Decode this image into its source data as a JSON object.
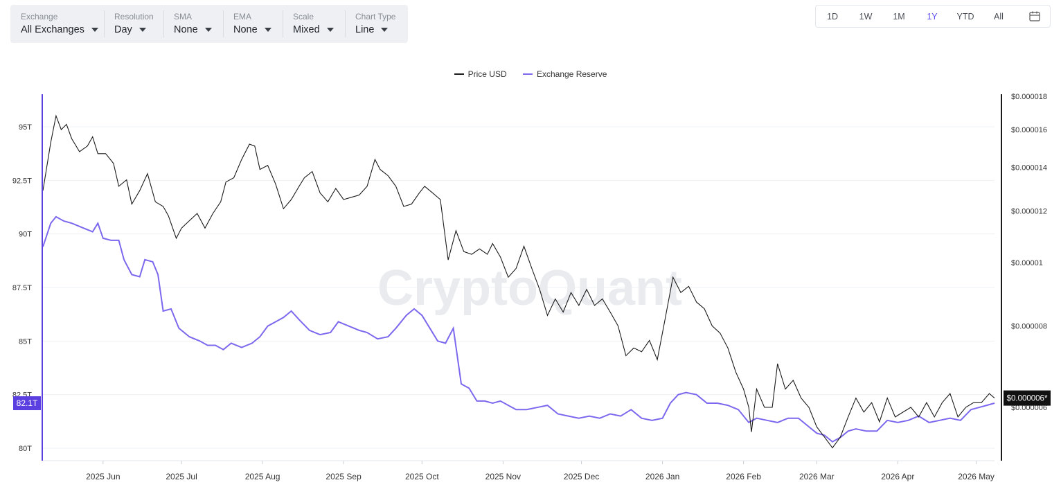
{
  "toolbar": [
    {
      "label": "Exchange",
      "value": "All Exchanges"
    },
    {
      "label": "Resolution",
      "value": "Day"
    },
    {
      "label": "SMA",
      "value": "None"
    },
    {
      "label": "EMA",
      "value": "None"
    },
    {
      "label": "Scale",
      "value": "Mixed"
    },
    {
      "label": "Chart Type",
      "value": "Line"
    }
  ],
  "ranges": [
    "1D",
    "1W",
    "1M",
    "1Y",
    "YTD",
    "All"
  ],
  "active_range": "1Y",
  "watermark": "CryptoQuant",
  "colors": {
    "price": "#1a1a1a",
    "reserve": "#7b68ee",
    "accent": "#5b4cf0",
    "left_axis": "#5b3fe0"
  },
  "chart_data": {
    "type": "line",
    "series": [
      {
        "name": "Price USD",
        "axis": "right"
      },
      {
        "name": "Exchange Reserve",
        "axis": "left"
      }
    ],
    "x_ticks": [
      "2025 Jun",
      "2025 Jul",
      "2025 Aug",
      "2025 Sep",
      "2025 Oct",
      "2025 Nov",
      "2025 Dec",
      "2026 Jan",
      "2026 Feb",
      "2026 Mar",
      "2026 Apr",
      "2026 May"
    ],
    "x_range": [
      "2025-05-09",
      "2026-05-08"
    ],
    "left_axis": {
      "ticks": [
        "95T",
        "92.5T",
        "90T",
        "87.5T",
        "85T",
        "82.5T",
        "80T"
      ],
      "values": [
        95,
        92.5,
        90,
        87.5,
        85,
        82.5,
        80
      ],
      "range": [
        79.5,
        96.5
      ],
      "current_label": "82.1T",
      "current": 82.1
    },
    "right_axis": {
      "scale": "log",
      "ticks": [
        "$0.000018",
        "$0.000016",
        "$0.000014",
        "$0.000012",
        "$0.00001",
        "$0.000008",
        "$0.000006"
      ],
      "values": [
        1.8e-05,
        1.6e-05,
        1.4e-05,
        1.2e-05,
        1e-05,
        8e-06,
        6e-06
      ],
      "current_label": "$0.000006*",
      "current": 6.2e-06
    },
    "price": [
      [
        "2025-05-09",
        1.29e-05
      ],
      [
        "2025-05-12",
        1.53e-05
      ],
      [
        "2025-05-14",
        1.68e-05
      ],
      [
        "2025-05-16",
        1.6e-05
      ],
      [
        "2025-05-18",
        1.63e-05
      ],
      [
        "2025-05-20",
        1.55e-05
      ],
      [
        "2025-05-23",
        1.48e-05
      ],
      [
        "2025-05-26",
        1.51e-05
      ],
      [
        "2025-05-28",
        1.56e-05
      ],
      [
        "2025-05-30",
        1.47e-05
      ],
      [
        "2025-06-02",
        1.47e-05
      ],
      [
        "2025-06-05",
        1.42e-05
      ],
      [
        "2025-06-07",
        1.31e-05
      ],
      [
        "2025-06-10",
        1.34e-05
      ],
      [
        "2025-06-12",
        1.23e-05
      ],
      [
        "2025-06-15",
        1.29e-05
      ],
      [
        "2025-06-18",
        1.37e-05
      ],
      [
        "2025-06-21",
        1.24e-05
      ],
      [
        "2025-06-24",
        1.22e-05
      ],
      [
        "2025-06-26",
        1.18e-05
      ],
      [
        "2025-06-29",
        1.09e-05
      ],
      [
        "2025-07-01",
        1.13e-05
      ],
      [
        "2025-07-04",
        1.16e-05
      ],
      [
        "2025-07-07",
        1.19e-05
      ],
      [
        "2025-07-10",
        1.13e-05
      ],
      [
        "2025-07-13",
        1.19e-05
      ],
      [
        "2025-07-16",
        1.24e-05
      ],
      [
        "2025-07-18",
        1.33e-05
      ],
      [
        "2025-07-21",
        1.35e-05
      ],
      [
        "2025-07-24",
        1.44e-05
      ],
      [
        "2025-07-27",
        1.52e-05
      ],
      [
        "2025-07-29",
        1.51e-05
      ],
      [
        "2025-07-31",
        1.39e-05
      ],
      [
        "2025-08-03",
        1.41e-05
      ],
      [
        "2025-08-06",
        1.32e-05
      ],
      [
        "2025-08-09",
        1.21e-05
      ],
      [
        "2025-08-12",
        1.25e-05
      ],
      [
        "2025-08-15",
        1.31e-05
      ],
      [
        "2025-08-17",
        1.35e-05
      ],
      [
        "2025-08-20",
        1.38e-05
      ],
      [
        "2025-08-23",
        1.28e-05
      ],
      [
        "2025-08-26",
        1.24e-05
      ],
      [
        "2025-08-29",
        1.3e-05
      ],
      [
        "2025-09-01",
        1.25e-05
      ],
      [
        "2025-09-04",
        1.26e-05
      ],
      [
        "2025-09-07",
        1.27e-05
      ],
      [
        "2025-09-10",
        1.31e-05
      ],
      [
        "2025-09-13",
        1.44e-05
      ],
      [
        "2025-09-15",
        1.39e-05
      ],
      [
        "2025-09-18",
        1.36e-05
      ],
      [
        "2025-09-21",
        1.31e-05
      ],
      [
        "2025-09-24",
        1.22e-05
      ],
      [
        "2025-09-27",
        1.23e-05
      ],
      [
        "2025-09-30",
        1.28e-05
      ],
      [
        "2025-10-02",
        1.31e-05
      ],
      [
        "2025-10-05",
        1.28e-05
      ],
      [
        "2025-10-08",
        1.25e-05
      ],
      [
        "2025-10-11",
        1.01e-05
      ],
      [
        "2025-10-14",
        1.12e-05
      ],
      [
        "2025-10-17",
        1.04e-05
      ],
      [
        "2025-10-20",
        1.03e-05
      ],
      [
        "2025-10-23",
        1.05e-05
      ],
      [
        "2025-10-26",
        1.03e-05
      ],
      [
        "2025-10-28",
        1.07e-05
      ],
      [
        "2025-10-31",
        1.02e-05
      ],
      [
        "2025-11-03",
        9.5e-06
      ],
      [
        "2025-11-06",
        9.8e-06
      ],
      [
        "2025-11-09",
        1.06e-05
      ],
      [
        "2025-11-12",
        9.8e-06
      ],
      [
        "2025-11-15",
        9.1e-06
      ],
      [
        "2025-11-18",
        8.3e-06
      ],
      [
        "2025-11-21",
        8.8e-06
      ],
      [
        "2025-11-24",
        8.4e-06
      ],
      [
        "2025-11-27",
        9e-06
      ],
      [
        "2025-11-30",
        8.6e-06
      ],
      [
        "2025-12-03",
        9.1e-06
      ],
      [
        "2025-12-06",
        8.6e-06
      ],
      [
        "2025-12-09",
        8.8e-06
      ],
      [
        "2025-12-12",
        8.4e-06
      ],
      [
        "2025-12-15",
        8e-06
      ],
      [
        "2025-12-18",
        7.2e-06
      ],
      [
        "2025-12-21",
        7.4e-06
      ],
      [
        "2025-12-24",
        7.3e-06
      ],
      [
        "2025-12-27",
        7.6e-06
      ],
      [
        "2025-12-30",
        7.1e-06
      ],
      [
        "2026-01-02",
        8.2e-06
      ],
      [
        "2026-01-05",
        9.5e-06
      ],
      [
        "2026-01-08",
        9e-06
      ],
      [
        "2026-01-11",
        9.2e-06
      ],
      [
        "2026-01-14",
        8.7e-06
      ],
      [
        "2026-01-17",
        8.5e-06
      ],
      [
        "2026-01-20",
        8e-06
      ],
      [
        "2026-01-23",
        7.8e-06
      ],
      [
        "2026-01-26",
        7.4e-06
      ],
      [
        "2026-01-29",
        6.8e-06
      ],
      [
        "2026-02-01",
        6.4e-06
      ],
      [
        "2026-02-03",
        6e-06
      ],
      [
        "2026-02-04",
        5.5e-06
      ],
      [
        "2026-02-06",
        6.4e-06
      ],
      [
        "2026-02-09",
        6e-06
      ],
      [
        "2026-02-12",
        6e-06
      ],
      [
        "2026-02-14",
        7e-06
      ],
      [
        "2026-02-17",
        6.4e-06
      ],
      [
        "2026-02-20",
        6.6e-06
      ],
      [
        "2026-02-23",
        6.2e-06
      ],
      [
        "2026-02-26",
        6e-06
      ],
      [
        "2026-03-01",
        5.6e-06
      ],
      [
        "2026-03-04",
        5.4e-06
      ],
      [
        "2026-03-07",
        5.2e-06
      ],
      [
        "2026-03-10",
        5.4e-06
      ],
      [
        "2026-03-13",
        5.8e-06
      ],
      [
        "2026-03-16",
        6.2e-06
      ],
      [
        "2026-03-19",
        5.9e-06
      ],
      [
        "2026-03-22",
        6.1e-06
      ],
      [
        "2026-03-25",
        5.7e-06
      ],
      [
        "2026-03-28",
        6.2e-06
      ],
      [
        "2026-03-31",
        5.8e-06
      ],
      [
        "2026-04-03",
        5.9e-06
      ],
      [
        "2026-04-06",
        6e-06
      ],
      [
        "2026-04-09",
        5.8e-06
      ],
      [
        "2026-04-12",
        6.1e-06
      ],
      [
        "2026-04-15",
        5.8e-06
      ],
      [
        "2026-04-18",
        6.1e-06
      ],
      [
        "2026-04-21",
        6.3e-06
      ],
      [
        "2026-04-24",
        5.8e-06
      ],
      [
        "2026-04-27",
        6e-06
      ],
      [
        "2026-04-30",
        6.1e-06
      ],
      [
        "2026-05-03",
        6.1e-06
      ],
      [
        "2026-05-06",
        6.3e-06
      ],
      [
        "2026-05-08",
        6.2e-06
      ]
    ],
    "reserve": [
      [
        "2025-05-09",
        89.4
      ],
      [
        "2025-05-12",
        90.5
      ],
      [
        "2025-05-14",
        90.8
      ],
      [
        "2025-05-17",
        90.6
      ],
      [
        "2025-05-20",
        90.5
      ],
      [
        "2025-05-24",
        90.3
      ],
      [
        "2025-05-28",
        90.1
      ],
      [
        "2025-05-30",
        90.5
      ],
      [
        "2025-06-01",
        89.8
      ],
      [
        "2025-06-04",
        89.7
      ],
      [
        "2025-06-07",
        89.7
      ],
      [
        "2025-06-09",
        88.8
      ],
      [
        "2025-06-12",
        88.1
      ],
      [
        "2025-06-15",
        88.0
      ],
      [
        "2025-06-17",
        88.8
      ],
      [
        "2025-06-20",
        88.7
      ],
      [
        "2025-06-22",
        88.1
      ],
      [
        "2025-06-24",
        86.4
      ],
      [
        "2025-06-27",
        86.5
      ],
      [
        "2025-06-30",
        85.6
      ],
      [
        "2025-07-04",
        85.2
      ],
      [
        "2025-07-08",
        85.0
      ],
      [
        "2025-07-11",
        84.8
      ],
      [
        "2025-07-14",
        84.8
      ],
      [
        "2025-07-17",
        84.6
      ],
      [
        "2025-07-20",
        84.9
      ],
      [
        "2025-07-24",
        84.7
      ],
      [
        "2025-07-28",
        84.9
      ],
      [
        "2025-07-31",
        85.2
      ],
      [
        "2025-08-03",
        85.7
      ],
      [
        "2025-08-06",
        85.9
      ],
      [
        "2025-08-09",
        86.1
      ],
      [
        "2025-08-12",
        86.4
      ],
      [
        "2025-08-15",
        86.0
      ],
      [
        "2025-08-19",
        85.5
      ],
      [
        "2025-08-23",
        85.3
      ],
      [
        "2025-08-27",
        85.4
      ],
      [
        "2025-08-30",
        85.9
      ],
      [
        "2025-09-03",
        85.7
      ],
      [
        "2025-09-07",
        85.5
      ],
      [
        "2025-09-10",
        85.4
      ],
      [
        "2025-09-14",
        85.1
      ],
      [
        "2025-09-18",
        85.2
      ],
      [
        "2025-09-21",
        85.6
      ],
      [
        "2025-09-25",
        86.2
      ],
      [
        "2025-09-28",
        86.5
      ],
      [
        "2025-10-01",
        86.2
      ],
      [
        "2025-10-04",
        85.6
      ],
      [
        "2025-10-07",
        85.0
      ],
      [
        "2025-10-10",
        84.9
      ],
      [
        "2025-10-13",
        85.6
      ],
      [
        "2025-10-16",
        83.0
      ],
      [
        "2025-10-19",
        82.8
      ],
      [
        "2025-10-22",
        82.2
      ],
      [
        "2025-10-25",
        82.2
      ],
      [
        "2025-10-28",
        82.1
      ],
      [
        "2025-10-31",
        82.2
      ],
      [
        "2025-11-03",
        82.0
      ],
      [
        "2025-11-06",
        81.8
      ],
      [
        "2025-11-10",
        81.8
      ],
      [
        "2025-11-14",
        81.9
      ],
      [
        "2025-11-18",
        82.0
      ],
      [
        "2025-11-22",
        81.6
      ],
      [
        "2025-11-26",
        81.5
      ],
      [
        "2025-11-30",
        81.4
      ],
      [
        "2025-12-04",
        81.5
      ],
      [
        "2025-12-08",
        81.4
      ],
      [
        "2025-12-12",
        81.6
      ],
      [
        "2025-12-16",
        81.5
      ],
      [
        "2025-12-20",
        81.8
      ],
      [
        "2025-12-24",
        81.4
      ],
      [
        "2025-12-28",
        81.3
      ],
      [
        "2026-01-01",
        81.4
      ],
      [
        "2026-01-04",
        82.1
      ],
      [
        "2026-01-07",
        82.5
      ],
      [
        "2026-01-10",
        82.6
      ],
      [
        "2026-01-14",
        82.5
      ],
      [
        "2026-01-18",
        82.1
      ],
      [
        "2026-01-22",
        82.1
      ],
      [
        "2026-01-26",
        82.0
      ],
      [
        "2026-01-30",
        81.8
      ],
      [
        "2026-02-03",
        81.2
      ],
      [
        "2026-02-06",
        81.4
      ],
      [
        "2026-02-10",
        81.3
      ],
      [
        "2026-02-14",
        81.2
      ],
      [
        "2026-02-18",
        81.4
      ],
      [
        "2026-02-22",
        81.4
      ],
      [
        "2026-02-26",
        81.0
      ],
      [
        "2026-03-01",
        80.7
      ],
      [
        "2026-03-04",
        80.6
      ],
      [
        "2026-03-07",
        80.3
      ],
      [
        "2026-03-10",
        80.5
      ],
      [
        "2026-03-13",
        80.8
      ],
      [
        "2026-03-16",
        80.9
      ],
      [
        "2026-03-20",
        80.8
      ],
      [
        "2026-03-24",
        80.8
      ],
      [
        "2026-03-28",
        81.3
      ],
      [
        "2026-04-01",
        81.2
      ],
      [
        "2026-04-05",
        81.3
      ],
      [
        "2026-04-09",
        81.5
      ],
      [
        "2026-04-13",
        81.2
      ],
      [
        "2026-04-17",
        81.3
      ],
      [
        "2026-04-21",
        81.4
      ],
      [
        "2026-04-25",
        81.3
      ],
      [
        "2026-04-29",
        81.8
      ],
      [
        "2026-05-02",
        81.9
      ],
      [
        "2026-05-05",
        82.0
      ],
      [
        "2026-05-08",
        82.1
      ]
    ]
  }
}
